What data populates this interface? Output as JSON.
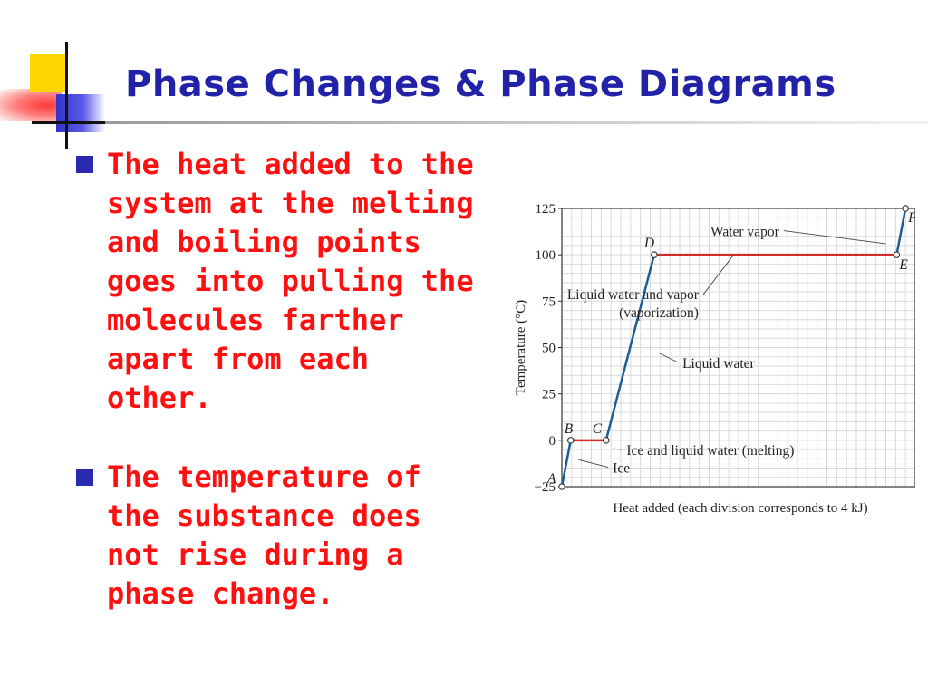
{
  "slide": {
    "title": "Phase Changes & Phase Diagrams",
    "bullets": [
      "The heat added to the system at the melting and boiling points goes into pulling the molecules farther apart from each other.",
      "The temperature of the substance does not rise during a phase change."
    ],
    "colors": {
      "title": "#2222a8",
      "text": "#ff1010",
      "bullet": "#2a2ab0"
    }
  },
  "chart_data": {
    "type": "line",
    "title": "",
    "xlabel": "Heat added (each division corresponds to 4 kJ)",
    "ylabel": "Temperature (°C)",
    "xlim": [
      0,
      36
    ],
    "ylim": [
      -25,
      125
    ],
    "yticks": [
      -25,
      0,
      25,
      50,
      75,
      100,
      125
    ],
    "x_division_kJ": 4,
    "grid": true,
    "points": [
      {
        "label": "A",
        "x": 0.0,
        "y": -25
      },
      {
        "label": "B",
        "x": 0.9,
        "y": 0
      },
      {
        "label": "C",
        "x": 4.5,
        "y": 0
      },
      {
        "label": "D",
        "x": 9.4,
        "y": 100
      },
      {
        "label": "E",
        "x": 34.1,
        "y": 100
      },
      {
        "label": "F",
        "x": 35.0,
        "y": 125
      }
    ],
    "segments": [
      {
        "from": "A",
        "to": "B",
        "phase": "Ice",
        "color": "#1a5e96"
      },
      {
        "from": "B",
        "to": "C",
        "phase": "Ice and liquid water (melting)",
        "color": "#d32a2a"
      },
      {
        "from": "C",
        "to": "D",
        "phase": "Liquid water",
        "color": "#1a5e96"
      },
      {
        "from": "D",
        "to": "E",
        "phase": "Liquid water and vapor (vaporization)",
        "color": "#d32a2a"
      },
      {
        "from": "E",
        "to": "F",
        "phase": "Water vapor",
        "color": "#1a5e96"
      }
    ],
    "annotations": [
      {
        "lines": [
          "Water vapor"
        ],
        "x": 22.5,
        "y": 112.5,
        "tx": 33.0,
        "ty": 106.0
      },
      {
        "lines": [
          "Liquid water and vapor",
          "(vaporization)"
        ],
        "x": 14.3,
        "y": 78.5,
        "tx": 17.5,
        "ty": 100.0
      },
      {
        "lines": [
          "Liquid water"
        ],
        "x": 12.1,
        "y": 41.5,
        "tx": 9.9,
        "ty": 47.0
      },
      {
        "lines": [
          "Ice and liquid water (melting)"
        ],
        "x": 6.4,
        "y": -5.5,
        "tx": 5.2,
        "ty": -4.5
      },
      {
        "lines": [
          "Ice"
        ],
        "x": 5.0,
        "y": -15.0,
        "tx": 1.7,
        "ty": -10.5
      }
    ]
  }
}
